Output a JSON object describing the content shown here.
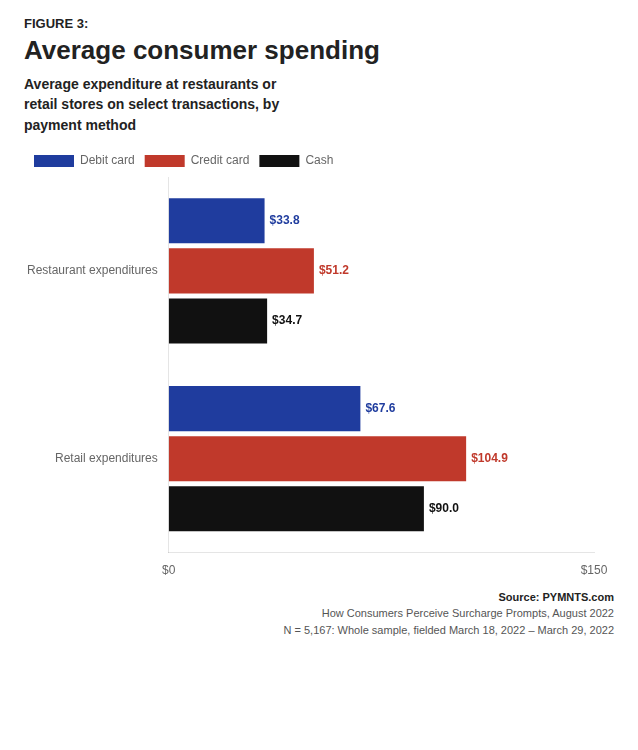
{
  "chart_data": {
    "type": "bar",
    "orientation": "horizontal",
    "title": "Average consumer spending",
    "subtitle": "Average expenditure at restaurants or\nretail stores on select transactions, by\npayment method",
    "annotations": [
      "FIGURE 3:",
      "Source: PYMNTS.com",
      "How Consumers Perceive Surcharge Prompts, August 2022",
      "N = 5,167: Whole sample, fielded March 18, 2022 – March 29, 2022"
    ],
    "categories": [
      "Restaurant expenditures",
      "Retail expenditures"
    ],
    "series": [
      {
        "name": "Debit card",
        "color": "#1f3c9e",
        "values": [
          33.8,
          67.6
        ],
        "value_labels": [
          "$33.8",
          "$67.6"
        ]
      },
      {
        "name": "Credit card",
        "color": "#c0392b",
        "values": [
          51.2,
          104.9
        ],
        "value_labels": [
          "$51.2",
          "$104.9"
        ]
      },
      {
        "name": "Cash",
        "color": "#111111",
        "values": [
          34.7,
          90.0
        ],
        "value_labels": [
          "$34.7",
          "$90.0"
        ]
      }
    ],
    "xlim": [
      0,
      150
    ],
    "xticks": [
      {
        "value": 0,
        "label": "$0"
      },
      {
        "value": 150,
        "label": "$150"
      }
    ],
    "grid": false,
    "legend": "top",
    "data_labels": true
  }
}
